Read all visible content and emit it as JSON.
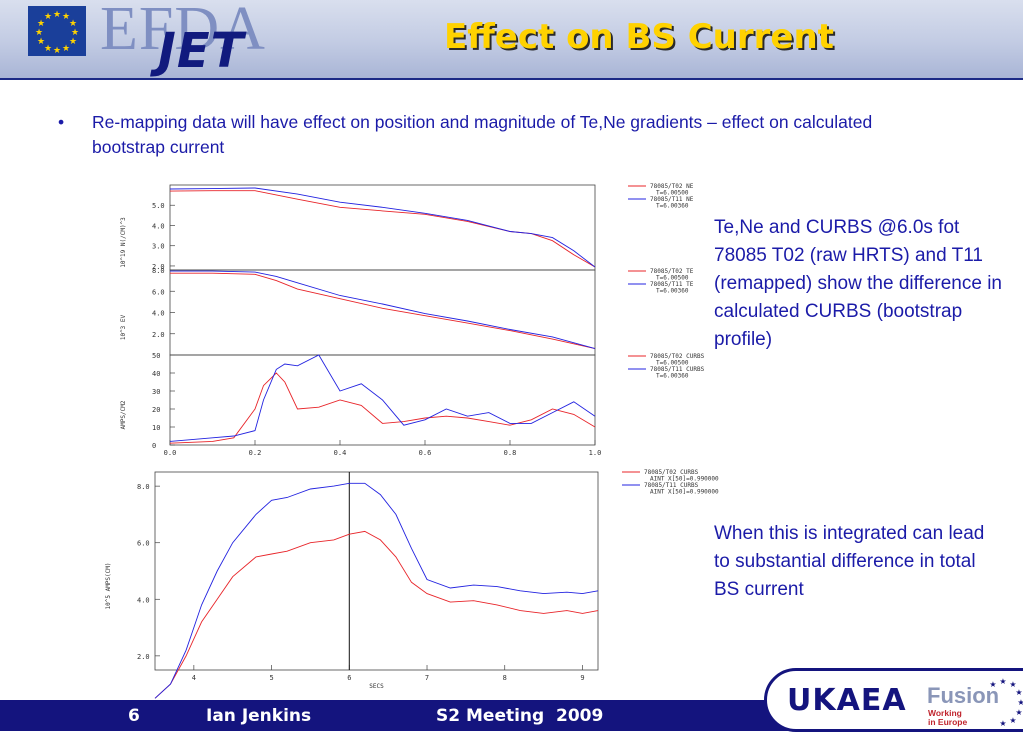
{
  "header": {
    "logo_efda": "EFDA",
    "logo_jet": "JET",
    "title": "Effect on BS Current"
  },
  "bullet": {
    "symbol": "•",
    "text": "Re-mapping data will have effect on position and magnitude of Te,Ne gradients – effect on calculated bootstrap current"
  },
  "side_notes": [
    "Te,Ne and CURBS @6.0s fot 78085 T02 (raw HRTS) and T11 (remapped) show the difference in calculated CURBS (bootstrap profile)",
    "When this is integrated can lead to substantial difference in total BS current"
  ],
  "footer": {
    "page": "6",
    "author": "Ian Jenkins",
    "event": "S2 Meeting  2009",
    "logo_ukaea": "UKAEA",
    "logo_fusion": "Fusion",
    "logo_fusion_sub": [
      "Working",
      "in Europe"
    ]
  },
  "colors": {
    "red": "#e8252a",
    "blue": "#2323e0",
    "title_yellow": "#ffd200",
    "text_blue": "#1b1ba8",
    "footer_bg": "#14147e"
  },
  "chart_data": [
    {
      "type": "line",
      "ylabel": "10^19 N(/CM)^3",
      "xlim": [
        0,
        1.0
      ],
      "ylim": [
        1.8,
        6.0
      ],
      "yticks": [
        "2.0",
        "3.0",
        "4.0",
        "5.0"
      ],
      "legend": [
        "78085/T02 NE",
        "T=6.00500",
        "78085/T11 NE",
        "T=6.00360"
      ],
      "x": [
        0.0,
        0.1,
        0.2,
        0.3,
        0.4,
        0.5,
        0.6,
        0.7,
        0.8,
        0.85,
        0.9,
        0.95,
        1.0
      ],
      "series": [
        {
          "name": "78085/T02 NE",
          "color": "red",
          "values": [
            5.7,
            5.72,
            5.72,
            5.3,
            4.9,
            4.72,
            4.55,
            4.2,
            3.7,
            3.6,
            3.25,
            2.55,
            1.95
          ]
        },
        {
          "name": "78085/T11 NE",
          "color": "blue",
          "values": [
            5.8,
            5.82,
            5.85,
            5.55,
            5.15,
            4.9,
            4.6,
            4.25,
            3.7,
            3.6,
            3.4,
            2.75,
            1.95
          ]
        }
      ]
    },
    {
      "type": "line",
      "ylabel": "10^3 EV",
      "xlim": [
        0,
        1.0
      ],
      "ylim": [
        0,
        8.0
      ],
      "yticks": [
        "2.0",
        "4.0",
        "6.0",
        "8.0"
      ],
      "legend": [
        "78085/T02 TE",
        "T=6.00500",
        "78085/T11 TE",
        "T=6.00360"
      ],
      "x": [
        0.0,
        0.1,
        0.2,
        0.25,
        0.3,
        0.4,
        0.5,
        0.6,
        0.7,
        0.8,
        0.9,
        1.0
      ],
      "series": [
        {
          "name": "78085/T02 TE",
          "color": "red",
          "values": [
            7.7,
            7.7,
            7.6,
            7.0,
            6.2,
            5.3,
            4.4,
            3.7,
            3.0,
            2.3,
            1.5,
            0.6
          ]
        },
        {
          "name": "78085/T11 TE",
          "color": "blue",
          "values": [
            7.9,
            7.9,
            7.8,
            7.4,
            6.8,
            5.6,
            4.8,
            3.9,
            3.2,
            2.4,
            1.7,
            0.6
          ]
        }
      ]
    },
    {
      "type": "line",
      "ylabel": "AMPS/CM2",
      "xlabel": "",
      "xlim": [
        0,
        1.0
      ],
      "ylim": [
        0,
        50
      ],
      "yticks": [
        "0",
        "10",
        "20",
        "30",
        "40",
        "50"
      ],
      "xticks": [
        "0.0",
        "0.2",
        "0.4",
        "0.6",
        "0.8",
        "1.0"
      ],
      "legend": [
        "78085/T02 CURBS",
        "T=6.00500",
        "78085/T11 CURBS",
        "T=6.00360"
      ],
      "x": [
        0.0,
        0.1,
        0.15,
        0.2,
        0.22,
        0.25,
        0.27,
        0.3,
        0.35,
        0.4,
        0.45,
        0.5,
        0.55,
        0.6,
        0.65,
        0.7,
        0.75,
        0.8,
        0.85,
        0.9,
        0.95,
        1.0
      ],
      "series": [
        {
          "name": "78085/T02 CURBS",
          "color": "red",
          "values": [
            1,
            2,
            4,
            20,
            33,
            40,
            35,
            20,
            21,
            25,
            22,
            12,
            13,
            15,
            16,
            15,
            13,
            11,
            14,
            20,
            17,
            10
          ]
        },
        {
          "name": "78085/T11 CURBS",
          "color": "blue",
          "values": [
            2,
            4,
            5,
            8,
            25,
            42,
            45,
            44,
            50,
            30,
            34,
            25,
            11,
            14,
            20,
            16,
            18,
            12,
            12,
            18,
            24,
            16
          ]
        }
      ]
    },
    {
      "type": "line",
      "ylabel": "10^5 AMPS(CM)",
      "xlabel": "SECS",
      "ylim": [
        1.5,
        8.5
      ],
      "yticks": [
        "2.0",
        "4.0",
        "6.0",
        "8.0"
      ],
      "xticks": [
        "4",
        "5",
        "6",
        "7",
        "8",
        "9"
      ],
      "legend": [
        "78085/T02 CURBS",
        "AINT X[50]=0.990000",
        "78085/T11 CURBS",
        "AINT X[50]=0.990000"
      ],
      "annotation": "vertical marker at t=6",
      "x": [
        3.5,
        3.7,
        3.9,
        4.1,
        4.3,
        4.5,
        4.8,
        5.0,
        5.2,
        5.5,
        5.8,
        6.0,
        6.2,
        6.4,
        6.6,
        6.8,
        7.0,
        7.3,
        7.6,
        7.9,
        8.2,
        8.5,
        8.8,
        9.0,
        9.2
      ],
      "series": [
        {
          "name": "78085/T02 CURBS",
          "color": "red",
          "values": [
            0.5,
            1.0,
            2.0,
            3.2,
            4.0,
            4.8,
            5.5,
            5.6,
            5.7,
            6.0,
            6.1,
            6.3,
            6.4,
            6.1,
            5.5,
            4.6,
            4.2,
            3.9,
            3.95,
            3.8,
            3.6,
            3.5,
            3.6,
            3.5,
            3.6
          ]
        },
        {
          "name": "78085/T11 CURBS",
          "color": "blue",
          "values": [
            0.5,
            1.0,
            2.2,
            3.8,
            5.0,
            6.0,
            7.0,
            7.5,
            7.6,
            7.9,
            8.0,
            8.1,
            8.1,
            7.7,
            7.0,
            5.8,
            4.7,
            4.4,
            4.5,
            4.45,
            4.3,
            4.2,
            4.25,
            4.2,
            4.3
          ]
        }
      ]
    }
  ]
}
